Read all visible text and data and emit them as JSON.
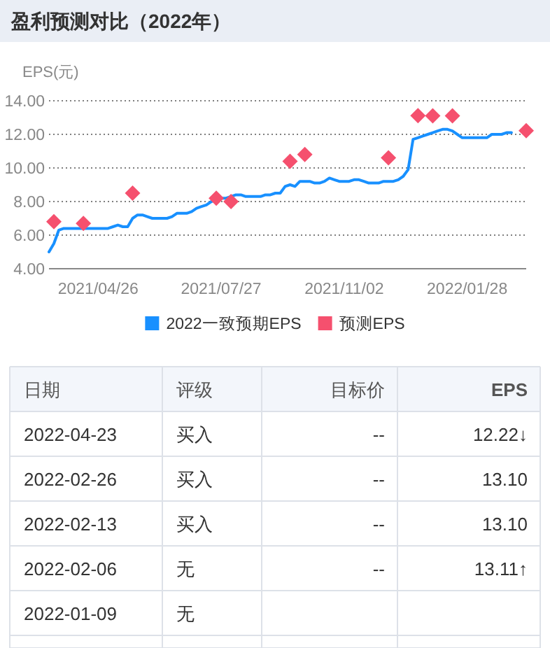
{
  "chart_data": {
    "type": "line",
    "title": "盈利预测对比（2022年）",
    "ylabel": "EPS(元)",
    "categories": [
      null,
      null,
      null,
      null,
      null,
      null,
      null,
      null,
      null,
      null,
      "2021/04/26",
      null,
      null,
      null,
      null,
      null,
      null,
      null,
      null,
      null,
      null,
      null,
      null,
      null,
      null,
      null,
      null,
      null,
      null,
      null,
      null,
      null,
      null,
      null,
      null,
      "2021/07/27",
      null,
      null,
      null,
      null,
      null,
      null,
      null,
      null,
      null,
      null,
      null,
      null,
      null,
      null,
      null,
      null,
      null,
      null,
      null,
      null,
      null,
      null,
      null,
      null,
      "2021/11/02",
      null,
      null,
      null,
      null,
      null,
      null,
      null,
      null,
      null,
      null,
      null,
      null,
      null,
      null,
      null,
      null,
      null,
      null,
      null,
      null,
      null,
      null,
      null,
      null,
      "2022/01/28",
      null,
      null,
      null,
      null,
      null,
      null,
      null,
      null,
      null,
      null,
      null,
      null
    ],
    "series": [
      {
        "name": "2022一致预期EPS",
        "color": "#1890ff",
        "marker": "none",
        "values": [
          5.0,
          5.5,
          6.3,
          6.4,
          6.4,
          6.4,
          6.4,
          6.4,
          6.4,
          6.4,
          6.4,
          6.4,
          6.4,
          6.5,
          6.6,
          6.5,
          6.5,
          7.0,
          7.2,
          7.2,
          7.1,
          7.0,
          7.0,
          7.0,
          7.0,
          7.1,
          7.3,
          7.3,
          7.3,
          7.4,
          7.6,
          7.7,
          7.8,
          8.0,
          8.1,
          8.2,
          8.2,
          8.3,
          8.4,
          8.4,
          8.3,
          8.3,
          8.3,
          8.3,
          8.4,
          8.4,
          8.5,
          8.5,
          8.9,
          9.0,
          8.9,
          9.2,
          9.2,
          9.2,
          9.1,
          9.1,
          9.2,
          9.4,
          9.3,
          9.2,
          9.2,
          9.2,
          9.3,
          9.3,
          9.2,
          9.1,
          9.1,
          9.1,
          9.2,
          9.2,
          9.2,
          9.3,
          9.5,
          9.9,
          11.7,
          11.8,
          11.9,
          12.0,
          12.1,
          12.2,
          12.3,
          12.3,
          12.2,
          12.0,
          11.8,
          11.8,
          11.8,
          11.8,
          11.8,
          11.8,
          12.0,
          12.0,
          12.0,
          12.1,
          12.1,
          null,
          null,
          null
        ]
      },
      {
        "name": "预测EPS",
        "type": "scatter",
        "color": "#f5506e",
        "marker": "diamond",
        "values": [
          null,
          6.8,
          null,
          null,
          null,
          null,
          null,
          6.7,
          null,
          null,
          null,
          null,
          null,
          null,
          null,
          null,
          null,
          8.5,
          null,
          null,
          null,
          null,
          null,
          null,
          null,
          null,
          null,
          null,
          null,
          null,
          null,
          null,
          null,
          null,
          8.2,
          null,
          null,
          8.0,
          null,
          null,
          null,
          null,
          null,
          null,
          null,
          null,
          null,
          null,
          null,
          10.4,
          null,
          null,
          10.8,
          null,
          null,
          null,
          null,
          null,
          null,
          null,
          null,
          null,
          null,
          null,
          null,
          null,
          null,
          null,
          null,
          10.6,
          null,
          null,
          null,
          null,
          null,
          13.11,
          null,
          null,
          13.1,
          null,
          null,
          null,
          13.1,
          null,
          null,
          null,
          null,
          null,
          null,
          null,
          null,
          null,
          null,
          null,
          null,
          null,
          null,
          12.22
        ]
      }
    ],
    "ylim": [
      4,
      14
    ],
    "yticks": [
      {
        "value": 4,
        "label": "4.00"
      },
      {
        "value": 6,
        "label": "6.00"
      },
      {
        "value": 8,
        "label": "8.00"
      },
      {
        "value": 10,
        "label": "10.00"
      },
      {
        "value": 12,
        "label": "12.00"
      },
      {
        "value": 14,
        "label": "14.00"
      }
    ],
    "grid": "y",
    "legend": "bottom",
    "annotations": [
      "日期",
      "评级",
      "目标价",
      "EPS",
      "2022-04-23",
      "买入",
      "--",
      "12.22↓",
      "2022-02-26",
      "买入",
      "--",
      "13.10",
      "2022-02-13",
      "买入",
      "--",
      "13.10",
      "2022-02-06",
      "无",
      "--",
      "13.11↑",
      "2022-01-09",
      "无"
    ]
  }
}
